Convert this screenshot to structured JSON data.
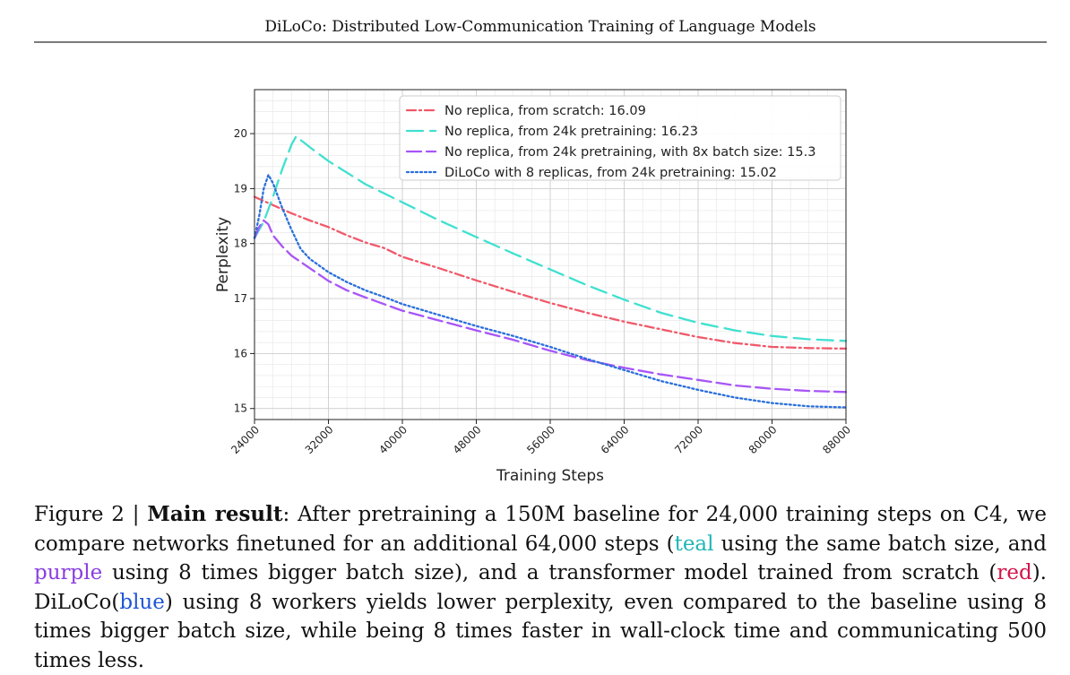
{
  "running_head": "DiLoCo: Distributed Low-Communication Training of Language Models",
  "caption": {
    "label": "Figure 2 |",
    "bold": "Main result",
    "t1": ": After pretraining a 150M baseline for 24,000 training steps on C4, we compare networks finetuned for an additional 64,000 steps (",
    "teal": "teal",
    "t2": " using the same batch size, and ",
    "purple": "purple",
    "t3": " using 8 times bigger batch size), and a transformer model trained from scratch (",
    "red": "red",
    "t4": "). DiLoCo(",
    "blue": "blue",
    "t5": ") using 8 workers yields lower perplexity, even compared to the baseline using 8 times bigger batch size, while being 8 times faster in wall-clock time and communicating 500 times less."
  },
  "chart_data": {
    "type": "line",
    "xlabel": "Training Steps",
    "ylabel": "Perplexity",
    "xlim": [
      24000,
      88000
    ],
    "ylim": [
      14.8,
      20.8
    ],
    "xticks": [
      24000,
      32000,
      40000,
      48000,
      56000,
      64000,
      72000,
      80000,
      88000
    ],
    "yticks": [
      15,
      16,
      17,
      18,
      19,
      20
    ],
    "grid": true,
    "legend_position": "top-right",
    "series": [
      {
        "name": "No replica, from scratch: 16.09",
        "color": "#f0596a",
        "dash": "dashdot",
        "points": [
          [
            24000,
            18.85
          ],
          [
            26000,
            18.7
          ],
          [
            28000,
            18.55
          ],
          [
            30000,
            18.42
          ],
          [
            32000,
            18.3
          ],
          [
            34000,
            18.15
          ],
          [
            36000,
            18.02
          ],
          [
            38000,
            17.92
          ],
          [
            40000,
            17.76
          ],
          [
            44000,
            17.55
          ],
          [
            48000,
            17.33
          ],
          [
            52000,
            17.12
          ],
          [
            56000,
            16.92
          ],
          [
            60000,
            16.74
          ],
          [
            64000,
            16.58
          ],
          [
            68000,
            16.44
          ],
          [
            72000,
            16.3
          ],
          [
            76000,
            16.19
          ],
          [
            80000,
            16.12
          ],
          [
            84000,
            16.1
          ],
          [
            88000,
            16.09
          ]
        ]
      },
      {
        "name": "No replica, from 24k pretraining: 16.23",
        "color": "#40e0d0",
        "dash": "dashed",
        "points": [
          [
            24000,
            18.1
          ],
          [
            25000,
            18.4
          ],
          [
            26000,
            18.85
          ],
          [
            27000,
            19.35
          ],
          [
            28000,
            19.8
          ],
          [
            28500,
            19.95
          ],
          [
            30000,
            19.75
          ],
          [
            32000,
            19.5
          ],
          [
            36000,
            19.08
          ],
          [
            40000,
            18.75
          ],
          [
            44000,
            18.42
          ],
          [
            48000,
            18.12
          ],
          [
            52000,
            17.82
          ],
          [
            56000,
            17.53
          ],
          [
            60000,
            17.24
          ],
          [
            64000,
            16.98
          ],
          [
            68000,
            16.74
          ],
          [
            72000,
            16.56
          ],
          [
            76000,
            16.42
          ],
          [
            80000,
            16.32
          ],
          [
            84000,
            16.26
          ],
          [
            88000,
            16.23
          ]
        ]
      },
      {
        "name": "No replica, from 24k pretraining, with 8x batch size: 15.3",
        "color": "#a855f7",
        "dash": "longdash",
        "points": [
          [
            24000,
            18.1
          ],
          [
            24500,
            18.3
          ],
          [
            25000,
            18.42
          ],
          [
            25500,
            18.35
          ],
          [
            26000,
            18.15
          ],
          [
            27000,
            17.95
          ],
          [
            28000,
            17.78
          ],
          [
            30000,
            17.55
          ],
          [
            32000,
            17.32
          ],
          [
            34000,
            17.15
          ],
          [
            36000,
            17.02
          ],
          [
            38000,
            16.9
          ],
          [
            40000,
            16.78
          ],
          [
            44000,
            16.6
          ],
          [
            48000,
            16.42
          ],
          [
            52000,
            16.25
          ],
          [
            56000,
            16.05
          ],
          [
            60000,
            15.88
          ],
          [
            64000,
            15.74
          ],
          [
            68000,
            15.62
          ],
          [
            72000,
            15.52
          ],
          [
            76000,
            15.42
          ],
          [
            80000,
            15.36
          ],
          [
            84000,
            15.32
          ],
          [
            88000,
            15.3
          ]
        ]
      },
      {
        "name": "DiLoCo with 8 replicas, from 24k pretraining: 15.02",
        "color": "#2a6fdb",
        "dash": "dotted",
        "points": [
          [
            24000,
            18.1
          ],
          [
            24500,
            18.5
          ],
          [
            25000,
            19.0
          ],
          [
            25500,
            19.25
          ],
          [
            26000,
            19.1
          ],
          [
            27000,
            18.65
          ],
          [
            28000,
            18.25
          ],
          [
            29000,
            17.9
          ],
          [
            30000,
            17.72
          ],
          [
            32000,
            17.48
          ],
          [
            34000,
            17.3
          ],
          [
            36000,
            17.15
          ],
          [
            38000,
            17.03
          ],
          [
            40000,
            16.9
          ],
          [
            44000,
            16.7
          ],
          [
            48000,
            16.5
          ],
          [
            52000,
            16.32
          ],
          [
            56000,
            16.12
          ],
          [
            60000,
            15.9
          ],
          [
            64000,
            15.7
          ],
          [
            68000,
            15.5
          ],
          [
            72000,
            15.34
          ],
          [
            76000,
            15.2
          ],
          [
            80000,
            15.1
          ],
          [
            84000,
            15.04
          ],
          [
            88000,
            15.02
          ]
        ]
      }
    ]
  }
}
